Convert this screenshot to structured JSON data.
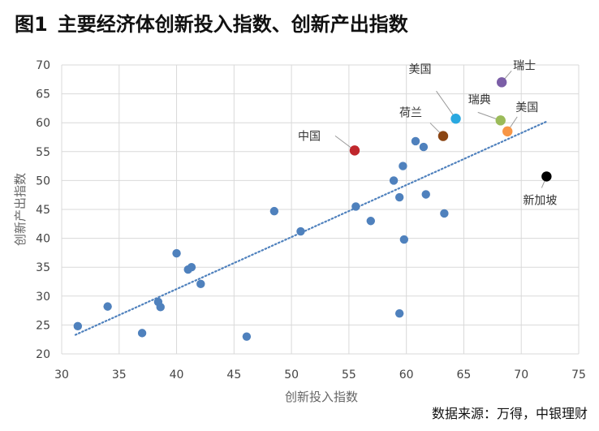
{
  "header": {
    "figure_label": "图1",
    "title_text": "主要经济体创新投入指数、创新产出指数"
  },
  "source": "数据来源：万得，中银理财",
  "chart_data": {
    "type": "scatter",
    "title": "主要经济体创新投入指数、创新产出指数",
    "xlabel": "创新投入指数",
    "ylabel": "创新产出指数",
    "xlim": [
      30,
      75
    ],
    "ylim": [
      20,
      70
    ],
    "xticks": [
      30,
      35,
      40,
      45,
      50,
      55,
      60,
      65,
      70,
      75
    ],
    "yticks": [
      20,
      25,
      30,
      35,
      40,
      45,
      50,
      55,
      60,
      65,
      70
    ],
    "grid": true,
    "trendline": {
      "style": "dotted",
      "x": [
        31.2,
        72.2
      ],
      "y": [
        23.3,
        60.2
      ]
    },
    "points": [
      {
        "x": 31.4,
        "y": 24.8
      },
      {
        "x": 34.0,
        "y": 28.2
      },
      {
        "x": 37.0,
        "y": 23.6
      },
      {
        "x": 38.4,
        "y": 29.0
      },
      {
        "x": 38.6,
        "y": 28.1
      },
      {
        "x": 40.0,
        "y": 37.4
      },
      {
        "x": 41.0,
        "y": 34.6
      },
      {
        "x": 41.3,
        "y": 35.0
      },
      {
        "x": 42.1,
        "y": 32.1
      },
      {
        "x": 46.1,
        "y": 23.0
      },
      {
        "x": 48.5,
        "y": 44.7
      },
      {
        "x": 50.8,
        "y": 41.2
      },
      {
        "x": 55.6,
        "y": 45.5
      },
      {
        "x": 56.9,
        "y": 43.0
      },
      {
        "x": 58.9,
        "y": 50.0
      },
      {
        "x": 59.4,
        "y": 47.1
      },
      {
        "x": 59.7,
        "y": 52.5
      },
      {
        "x": 59.8,
        "y": 39.8
      },
      {
        "x": 59.4,
        "y": 27.0
      },
      {
        "x": 60.8,
        "y": 56.8
      },
      {
        "x": 61.5,
        "y": 55.8
      },
      {
        "x": 61.7,
        "y": 47.6
      },
      {
        "x": 63.3,
        "y": 44.3
      }
    ],
    "highlights": [
      {
        "label": "中国",
        "x": 55.5,
        "y": 55.2,
        "color": "#c0272d"
      },
      {
        "label": "荷兰",
        "x": 63.2,
        "y": 57.7,
        "color": "#8b4513"
      },
      {
        "label": "美国",
        "x": 64.3,
        "y": 60.7,
        "color": "#29a8e0"
      },
      {
        "label": "瑞士",
        "x": 68.3,
        "y": 67.0,
        "color": "#7b5ea7"
      },
      {
        "label": "瑞典",
        "x": 68.2,
        "y": 60.4,
        "color": "#9bbb59"
      },
      {
        "label": "美国",
        "x": 68.8,
        "y": 58.5,
        "color": "#f79646"
      },
      {
        "label": "新加坡",
        "x": 72.2,
        "y": 50.7,
        "color": "#000000"
      }
    ],
    "colors": {
      "point": "#4f81bd",
      "trendline": "#4f81bd",
      "grid": "#d9d9d9",
      "label": "#444444",
      "axis_title": "#666666"
    }
  }
}
